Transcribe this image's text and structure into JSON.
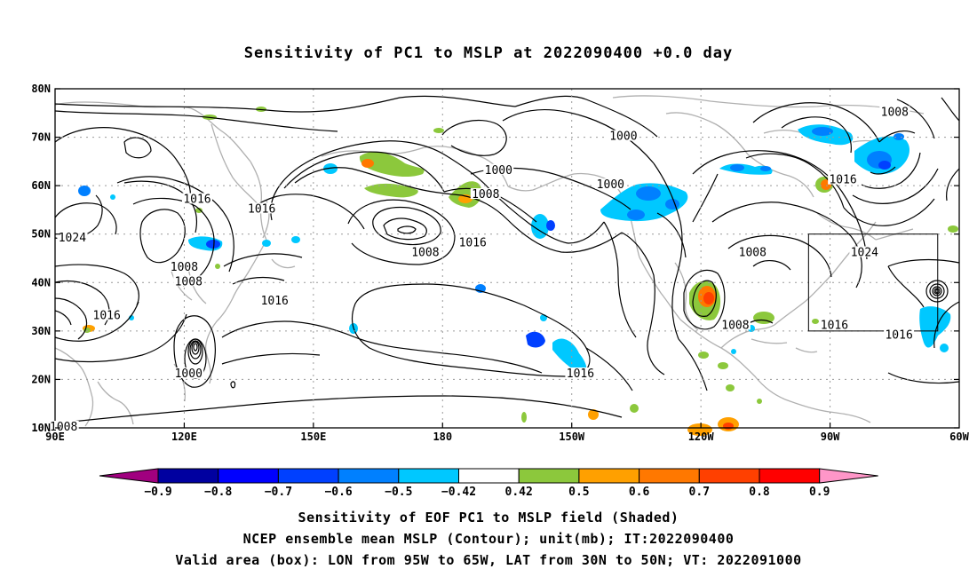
{
  "title": "Sensitivity of PC1 to MSLP at 2022090400 +0.0 day",
  "lat_labels": [
    "80N",
    "70N",
    "60N",
    "50N",
    "40N",
    "30N",
    "20N",
    "10N"
  ],
  "lon_labels": [
    "90E",
    "120E",
    "150E",
    "180",
    "150W",
    "120W",
    "90W",
    "60W"
  ],
  "contour_labels": [
    {
      "text": "1000",
      "lon": -138,
      "lat": 70
    },
    {
      "text": "1000",
      "lon": -167,
      "lat": 63
    },
    {
      "text": "1000",
      "lon": -141,
      "lat": 60
    },
    {
      "text": "1008",
      "lon": -170,
      "lat": 58
    },
    {
      "text": "1016",
      "lon": 123,
      "lat": 57
    },
    {
      "text": "1016",
      "lon": 138,
      "lat": 55
    },
    {
      "text": "1024",
      "lon": 94,
      "lat": 49
    },
    {
      "text": "1016",
      "lon": -173,
      "lat": 48
    },
    {
      "text": "1008",
      "lon": 176,
      "lat": 46
    },
    {
      "text": "1008",
      "lon": 120,
      "lat": 43
    },
    {
      "text": "1008",
      "lon": 121,
      "lat": 40
    },
    {
      "text": "1024",
      "lon": -82,
      "lat": 46
    },
    {
      "text": "1008",
      "lon": -108,
      "lat": 46
    },
    {
      "text": "1016",
      "lon": 141,
      "lat": 36
    },
    {
      "text": "1016",
      "lon": 102,
      "lat": 33
    },
    {
      "text": "1008",
      "lon": -112,
      "lat": 31
    },
    {
      "text": "1016",
      "lon": -89,
      "lat": 31
    },
    {
      "text": "1016",
      "lon": -74,
      "lat": 29
    },
    {
      "text": "1008",
      "lon": -75,
      "lat": 75
    },
    {
      "text": "1016",
      "lon": -87,
      "lat": 61
    },
    {
      "text": "1000",
      "lon": 121,
      "lat": 21
    },
    {
      "text": "1016",
      "lon": -148,
      "lat": 21
    },
    {
      "text": "1008",
      "lon": 92,
      "lat": 10
    }
  ],
  "valid_box": {
    "lon_min": -95,
    "lon_max": -65,
    "lat_min": 30,
    "lat_max": 50
  },
  "colorbar": {
    "colors": [
      "#a0007f",
      "#0000a0",
      "#0000ff",
      "#0040ff",
      "#0080ff",
      "#00c8ff",
      "#ffffff",
      "#8cc83c",
      "#ffa000",
      "#ff7800",
      "#ff4000",
      "#ff0000",
      "#ff96c8"
    ],
    "labels": [
      "−0.9",
      "−0.8",
      "−0.7",
      "−0.6",
      "−0.5",
      "−0.42",
      "0.42",
      "0.5",
      "0.6",
      "0.7",
      "0.8",
      "0.9"
    ]
  },
  "captions": [
    "Sensitivity of EOF PC1 to MSLP field (Shaded)",
    "NCEP ensemble mean MSLP (Contour); unit(mb); IT:2022090400",
    "Valid area (box): LON from 95W to 65W, LAT from 30N to 50N; VT: 2022091000"
  ]
}
